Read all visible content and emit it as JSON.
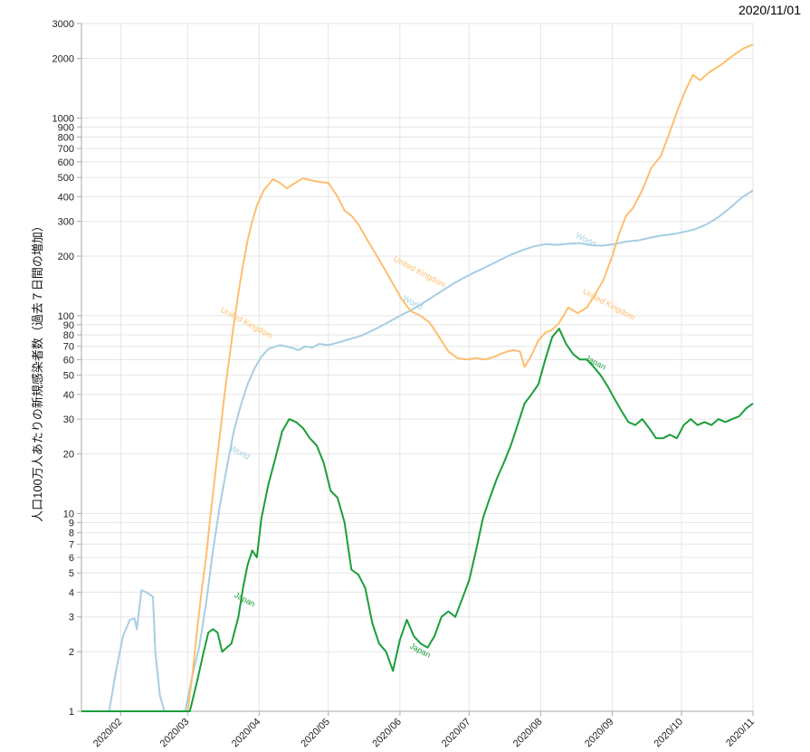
{
  "date_stamp": "2020/11/01",
  "colors": {
    "world": "#a6cee3",
    "united_kingdom": "#fdbf6f",
    "japan": "#1a9e3a",
    "grid": "#e6e6e6",
    "axis": "#aaaaaa"
  },
  "chart_data": {
    "type": "line",
    "title": "",
    "ylabel": "人口100万人あたりの新規感染者数（過去７日間の増加）",
    "xlabel": "",
    "y_scale": "log",
    "ylim": [
      1,
      3000
    ],
    "xlim": [
      "2020-01-15",
      "2020-11-01"
    ],
    "grid": true,
    "y_ticks": [
      1,
      2,
      3,
      4,
      5,
      6,
      7,
      8,
      9,
      10,
      20,
      30,
      40,
      50,
      60,
      70,
      80,
      90,
      100,
      200,
      300,
      400,
      500,
      600,
      700,
      800,
      900,
      1000,
      2000,
      3000
    ],
    "x_ticks": [
      "2020/02",
      "2020/03",
      "2020/04",
      "2020/05",
      "2020/06",
      "2020/07",
      "2020/08",
      "2020/09",
      "2020/10",
      "2020/11"
    ],
    "x_tick_dates": [
      "2020-02-01",
      "2020-03-01",
      "2020-04-01",
      "2020-05-01",
      "2020-06-01",
      "2020-07-01",
      "2020-08-01",
      "2020-09-01",
      "2020-10-01",
      "2020-11-01"
    ],
    "series": [
      {
        "name": "World",
        "color": "#a6cee3",
        "labels": [
          {
            "text": "World",
            "date": "2020-03-19",
            "y": 21
          },
          {
            "text": "World",
            "date": "2020-06-02",
            "y": 120
          },
          {
            "text": "World",
            "date": "2020-08-16",
            "y": 250
          }
        ],
        "points": [
          [
            "2020-01-15",
            1
          ],
          [
            "2020-01-27",
            1
          ],
          [
            "2020-01-30",
            1.6
          ],
          [
            "2020-02-02",
            2.4
          ],
          [
            "2020-02-05",
            2.9
          ],
          [
            "2020-02-07",
            2.95
          ],
          [
            "2020-02-08",
            2.6
          ],
          [
            "2020-02-10",
            4.1
          ],
          [
            "2020-02-12",
            4.0
          ],
          [
            "2020-02-15",
            3.8
          ],
          [
            "2020-02-16",
            2.0
          ],
          [
            "2020-02-18",
            1.2
          ],
          [
            "2020-02-20",
            1
          ],
          [
            "2020-02-29",
            1
          ],
          [
            "2020-03-03",
            1.5
          ],
          [
            "2020-03-06",
            2.1
          ],
          [
            "2020-03-09",
            3.5
          ],
          [
            "2020-03-12",
            6.5
          ],
          [
            "2020-03-15",
            11
          ],
          [
            "2020-03-18",
            17
          ],
          [
            "2020-03-21",
            26
          ],
          [
            "2020-03-24",
            35
          ],
          [
            "2020-03-27",
            45
          ],
          [
            "2020-03-30",
            54
          ],
          [
            "2020-04-02",
            62
          ],
          [
            "2020-04-05",
            68
          ],
          [
            "2020-04-10",
            71
          ],
          [
            "2020-04-15",
            69
          ],
          [
            "2020-04-18",
            67
          ],
          [
            "2020-04-21",
            70
          ],
          [
            "2020-04-24",
            69
          ],
          [
            "2020-04-27",
            72
          ],
          [
            "2020-05-01",
            71
          ],
          [
            "2020-05-05",
            73
          ],
          [
            "2020-05-10",
            76
          ],
          [
            "2020-05-15",
            79
          ],
          [
            "2020-05-20",
            84
          ],
          [
            "2020-05-25",
            90
          ],
          [
            "2020-05-30",
            97
          ],
          [
            "2020-06-04",
            104
          ],
          [
            "2020-06-09",
            112
          ],
          [
            "2020-06-14",
            122
          ],
          [
            "2020-06-19",
            133
          ],
          [
            "2020-06-24",
            145
          ],
          [
            "2020-06-29",
            156
          ],
          [
            "2020-07-04",
            167
          ],
          [
            "2020-07-09",
            178
          ],
          [
            "2020-07-14",
            190
          ],
          [
            "2020-07-19",
            203
          ],
          [
            "2020-07-24",
            214
          ],
          [
            "2020-07-29",
            224
          ],
          [
            "2020-08-03",
            230
          ],
          [
            "2020-08-08",
            228
          ],
          [
            "2020-08-13",
            231
          ],
          [
            "2020-08-18",
            233
          ],
          [
            "2020-08-23",
            227
          ],
          [
            "2020-08-28",
            226
          ],
          [
            "2020-09-02",
            230
          ],
          [
            "2020-09-07",
            237
          ],
          [
            "2020-09-12",
            240
          ],
          [
            "2020-09-17",
            247
          ],
          [
            "2020-09-22",
            254
          ],
          [
            "2020-09-27",
            258
          ],
          [
            "2020-10-02",
            265
          ],
          [
            "2020-10-07",
            274
          ],
          [
            "2020-10-12",
            290
          ],
          [
            "2020-10-17",
            315
          ],
          [
            "2020-10-22",
            350
          ],
          [
            "2020-10-27",
            395
          ],
          [
            "2020-11-01",
            430
          ]
        ]
      },
      {
        "name": "United Kingdom",
        "color": "#fdbf6f",
        "labels": [
          {
            "text": "United Kingdom",
            "date": "2020-03-15",
            "y": 105
          },
          {
            "text": "United Kingdom",
            "date": "2020-05-29",
            "y": 190
          },
          {
            "text": "United Kingdom",
            "date": "2020-08-19",
            "y": 130
          }
        ],
        "points": [
          [
            "2020-03-01",
            1
          ],
          [
            "2020-03-03",
            1.5
          ],
          [
            "2020-03-05",
            2.5
          ],
          [
            "2020-03-07",
            4
          ],
          [
            "2020-03-09",
            6
          ],
          [
            "2020-03-11",
            10
          ],
          [
            "2020-03-13",
            16
          ],
          [
            "2020-03-15",
            25
          ],
          [
            "2020-03-17",
            40
          ],
          [
            "2020-03-19",
            60
          ],
          [
            "2020-03-21",
            90
          ],
          [
            "2020-03-23",
            130
          ],
          [
            "2020-03-25",
            180
          ],
          [
            "2020-03-27",
            240
          ],
          [
            "2020-03-29",
            300
          ],
          [
            "2020-03-31",
            360
          ],
          [
            "2020-04-03",
            430
          ],
          [
            "2020-04-07",
            490
          ],
          [
            "2020-04-10",
            470
          ],
          [
            "2020-04-13",
            440
          ],
          [
            "2020-04-16",
            465
          ],
          [
            "2020-04-20",
            495
          ],
          [
            "2020-04-23",
            485
          ],
          [
            "2020-04-27",
            475
          ],
          [
            "2020-05-01",
            470
          ],
          [
            "2020-05-05",
            400
          ],
          [
            "2020-05-08",
            340
          ],
          [
            "2020-05-11",
            320
          ],
          [
            "2020-05-14",
            290
          ],
          [
            "2020-05-18",
            240
          ],
          [
            "2020-05-21",
            210
          ],
          [
            "2020-05-25",
            175
          ],
          [
            "2020-05-29",
            145
          ],
          [
            "2020-06-02",
            120
          ],
          [
            "2020-06-06",
            105
          ],
          [
            "2020-06-10",
            100
          ],
          [
            "2020-06-14",
            92
          ],
          [
            "2020-06-18",
            78
          ],
          [
            "2020-06-22",
            66
          ],
          [
            "2020-06-26",
            61
          ],
          [
            "2020-06-30",
            60
          ],
          [
            "2020-07-04",
            61
          ],
          [
            "2020-07-08",
            60
          ],
          [
            "2020-07-12",
            62
          ],
          [
            "2020-07-16",
            65
          ],
          [
            "2020-07-20",
            67
          ],
          [
            "2020-07-23",
            66
          ],
          [
            "2020-07-25",
            55
          ],
          [
            "2020-07-28",
            63
          ],
          [
            "2020-07-31",
            75
          ],
          [
            "2020-08-03",
            82
          ],
          [
            "2020-08-06",
            85
          ],
          [
            "2020-08-09",
            92
          ],
          [
            "2020-08-13",
            110
          ],
          [
            "2020-08-17",
            103
          ],
          [
            "2020-08-21",
            110
          ],
          [
            "2020-08-24",
            125
          ],
          [
            "2020-08-28",
            150
          ],
          [
            "2020-09-01",
            200
          ],
          [
            "2020-09-04",
            260
          ],
          [
            "2020-09-07",
            320
          ],
          [
            "2020-09-10",
            350
          ],
          [
            "2020-09-14",
            430
          ],
          [
            "2020-09-18",
            560
          ],
          [
            "2020-09-22",
            640
          ],
          [
            "2020-09-26",
            850
          ],
          [
            "2020-09-30",
            1150
          ],
          [
            "2020-10-03",
            1400
          ],
          [
            "2020-10-06",
            1650
          ],
          [
            "2020-10-09",
            1550
          ],
          [
            "2020-10-13",
            1700
          ],
          [
            "2020-10-18",
            1850
          ],
          [
            "2020-10-23",
            2050
          ],
          [
            "2020-10-28",
            2250
          ],
          [
            "2020-11-01",
            2350
          ]
        ]
      },
      {
        "name": "Japan",
        "color": "#1a9e3a",
        "labels": [
          {
            "text": "Japan",
            "date": "2020-03-21",
            "y": 3.8
          },
          {
            "text": "Japan",
            "date": "2020-06-05",
            "y": 2.1
          },
          {
            "text": "Japan",
            "date": "2020-08-20",
            "y": 60
          }
        ],
        "points": [
          [
            "2020-01-15",
            1
          ],
          [
            "2020-03-02",
            1
          ],
          [
            "2020-03-05",
            1.4
          ],
          [
            "2020-03-08",
            2.0
          ],
          [
            "2020-03-10",
            2.5
          ],
          [
            "2020-03-12",
            2.6
          ],
          [
            "2020-03-14",
            2.5
          ],
          [
            "2020-03-16",
            2.0
          ],
          [
            "2020-03-18",
            2.1
          ],
          [
            "2020-03-20",
            2.2
          ],
          [
            "2020-03-23",
            3.0
          ],
          [
            "2020-03-25",
            4.2
          ],
          [
            "2020-03-27",
            5.5
          ],
          [
            "2020-03-29",
            6.5
          ],
          [
            "2020-03-31",
            6.0
          ],
          [
            "2020-04-02",
            9.5
          ],
          [
            "2020-04-05",
            14
          ],
          [
            "2020-04-08",
            19
          ],
          [
            "2020-04-11",
            26
          ],
          [
            "2020-04-14",
            30
          ],
          [
            "2020-04-17",
            29
          ],
          [
            "2020-04-20",
            27
          ],
          [
            "2020-04-23",
            24
          ],
          [
            "2020-04-26",
            22
          ],
          [
            "2020-04-29",
            18
          ],
          [
            "2020-05-02",
            13
          ],
          [
            "2020-05-05",
            12
          ],
          [
            "2020-05-08",
            9
          ],
          [
            "2020-05-11",
            5.2
          ],
          [
            "2020-05-14",
            4.9
          ],
          [
            "2020-05-17",
            4.2
          ],
          [
            "2020-05-20",
            2.8
          ],
          [
            "2020-05-23",
            2.2
          ],
          [
            "2020-05-26",
            2.0
          ],
          [
            "2020-05-29",
            1.6
          ],
          [
            "2020-06-01",
            2.3
          ],
          [
            "2020-06-04",
            2.9
          ],
          [
            "2020-06-07",
            2.4
          ],
          [
            "2020-06-10",
            2.2
          ],
          [
            "2020-06-13",
            2.1
          ],
          [
            "2020-06-16",
            2.4
          ],
          [
            "2020-06-19",
            3.0
          ],
          [
            "2020-06-22",
            3.2
          ],
          [
            "2020-06-25",
            3.0
          ],
          [
            "2020-06-28",
            3.7
          ],
          [
            "2020-07-01",
            4.6
          ],
          [
            "2020-07-04",
            6.5
          ],
          [
            "2020-07-07",
            9.5
          ],
          [
            "2020-07-10",
            12
          ],
          [
            "2020-07-13",
            15
          ],
          [
            "2020-07-16",
            18
          ],
          [
            "2020-07-19",
            22
          ],
          [
            "2020-07-22",
            28
          ],
          [
            "2020-07-25",
            36
          ],
          [
            "2020-07-28",
            40
          ],
          [
            "2020-07-31",
            45
          ],
          [
            "2020-08-03",
            60
          ],
          [
            "2020-08-06",
            78
          ],
          [
            "2020-08-09",
            86
          ],
          [
            "2020-08-12",
            72
          ],
          [
            "2020-08-15",
            64
          ],
          [
            "2020-08-18",
            60
          ],
          [
            "2020-08-21",
            60
          ],
          [
            "2020-08-24",
            55
          ],
          [
            "2020-08-27",
            50
          ],
          [
            "2020-08-30",
            44
          ],
          [
            "2020-09-02",
            38
          ],
          [
            "2020-09-05",
            33
          ],
          [
            "2020-09-08",
            29
          ],
          [
            "2020-09-11",
            28
          ],
          [
            "2020-09-14",
            30
          ],
          [
            "2020-09-17",
            27
          ],
          [
            "2020-09-20",
            24
          ],
          [
            "2020-09-23",
            24
          ],
          [
            "2020-09-26",
            25
          ],
          [
            "2020-09-29",
            24
          ],
          [
            "2020-10-02",
            28
          ],
          [
            "2020-10-05",
            30
          ],
          [
            "2020-10-08",
            28
          ],
          [
            "2020-10-11",
            29
          ],
          [
            "2020-10-14",
            28
          ],
          [
            "2020-10-17",
            30
          ],
          [
            "2020-10-20",
            29
          ],
          [
            "2020-10-23",
            30
          ],
          [
            "2020-10-26",
            31
          ],
          [
            "2020-10-29",
            34
          ],
          [
            "2020-11-01",
            36
          ]
        ]
      }
    ]
  }
}
